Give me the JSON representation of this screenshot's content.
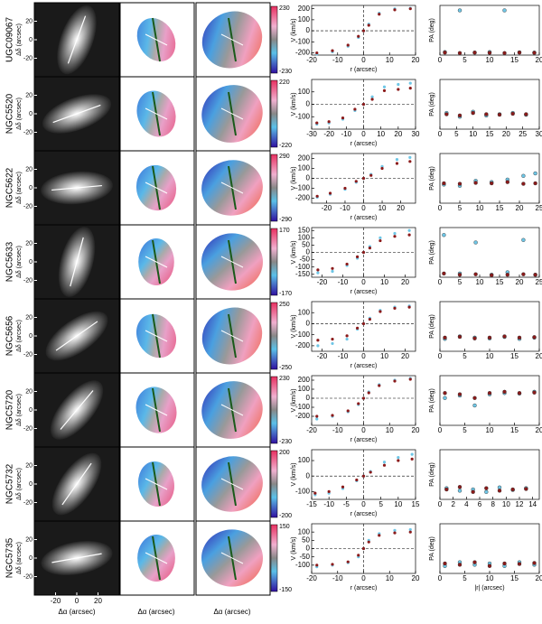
{
  "labels": {
    "dec": "Δδ (arcsec)",
    "ra": "Δα (arcsec)",
    "v": "V (km/s)",
    "r": "r (arcsec)",
    "pa": "PA (deg)",
    "absr": "|r| (arcsec)"
  },
  "colors": {
    "red": "#8b1a1a",
    "blue": "#6ec6e6"
  },
  "img_lim": [
    -40,
    40
  ],
  "img_yticks": [
    20,
    0,
    -20
  ],
  "img_xticks": [
    -20,
    0,
    20
  ],
  "galaxies": [
    {
      "name": "UGC09067",
      "colorbar": [
        230,
        -230
      ],
      "rc": {
        "xlim": [
          -20,
          20
        ],
        "xticks": [
          -20,
          -10,
          0,
          10,
          20
        ],
        "ylim": [
          -220,
          230
        ],
        "yticks": [
          -200,
          -100,
          0,
          100,
          200
        ],
        "x": [
          -18,
          -12,
          -6,
          -2,
          0,
          2,
          6,
          12,
          18
        ],
        "red": [
          -200,
          -180,
          -130,
          -50,
          0,
          50,
          150,
          190,
          200
        ],
        "blue": [
          -210,
          -190,
          -140,
          -60,
          0,
          60,
          160,
          200,
          205
        ]
      },
      "pa": {
        "xlim": [
          0,
          20
        ],
        "xticks": [
          0,
          5,
          10,
          15,
          20
        ],
        "ylim": [
          0,
          200
        ],
        "x": [
          1,
          4,
          7,
          10,
          13,
          16,
          19
        ],
        "red": [
          10,
          8,
          10,
          9,
          8,
          10,
          9
        ],
        "blue": [
          12,
          180,
          10,
          12,
          180,
          11,
          10
        ]
      }
    },
    {
      "name": "NGC5520",
      "colorbar": [
        220,
        -220
      ],
      "rc": {
        "xlim": [
          -30,
          30
        ],
        "xticks": [
          -30,
          -20,
          -10,
          0,
          10,
          20,
          30
        ],
        "ylim": [
          -200,
          200
        ],
        "yticks": [
          -100,
          0,
          100
        ],
        "x": [
          -27,
          -20,
          -12,
          -5,
          0,
          5,
          12,
          20,
          27
        ],
        "red": [
          -150,
          -140,
          -110,
          -40,
          0,
          40,
          110,
          120,
          130
        ],
        "blue": [
          -160,
          -150,
          -120,
          -50,
          0,
          60,
          140,
          160,
          170
        ]
      },
      "pa": {
        "xlim": [
          0,
          30
        ],
        "xticks": [
          0,
          5,
          10,
          15,
          20,
          25,
          30
        ],
        "ylim": [
          0,
          200
        ],
        "x": [
          2,
          6,
          10,
          14,
          18,
          22,
          26
        ],
        "red": [
          60,
          55,
          65,
          60,
          58,
          62,
          60
        ],
        "blue": [
          65,
          50,
          70,
          55,
          60,
          65,
          58
        ]
      }
    },
    {
      "name": "NGC5622",
      "colorbar": [
        290,
        -290
      ],
      "rc": {
        "xlim": [
          -28,
          28
        ],
        "xticks": [
          -20,
          -10,
          0,
          10,
          20
        ],
        "ylim": [
          -250,
          250
        ],
        "yticks": [
          -200,
          -100,
          0,
          100,
          200
        ],
        "x": [
          -25,
          -18,
          -10,
          -4,
          0,
          4,
          10,
          18,
          25
        ],
        "red": [
          -180,
          -150,
          -100,
          -30,
          0,
          30,
          100,
          150,
          170
        ],
        "blue": [
          -190,
          -160,
          -110,
          -40,
          0,
          40,
          120,
          190,
          210
        ]
      },
      "pa": {
        "xlim": [
          0,
          25
        ],
        "xticks": [
          0,
          5,
          10,
          15,
          20,
          25
        ],
        "ylim": [
          0,
          200
        ],
        "x": [
          1,
          5,
          9,
          13,
          17,
          21,
          24
        ],
        "red": [
          80,
          78,
          82,
          80,
          85,
          78,
          80
        ],
        "blue": [
          75,
          70,
          90,
          85,
          95,
          110,
          120
        ]
      }
    },
    {
      "name": "NGC5633",
      "colorbar": [
        170,
        -170
      ],
      "rc": {
        "xlim": [
          -25,
          25
        ],
        "xticks": [
          -20,
          -10,
          0,
          10,
          20
        ],
        "ylim": [
          -170,
          170
        ],
        "yticks": [
          -150,
          -100,
          -50,
          0,
          50,
          100,
          150
        ],
        "x": [
          -22,
          -15,
          -8,
          -3,
          0,
          3,
          8,
          15,
          22
        ],
        "red": [
          -120,
          -110,
          -80,
          -30,
          0,
          30,
          80,
          110,
          120
        ],
        "blue": [
          -140,
          -130,
          -90,
          -40,
          0,
          40,
          100,
          130,
          150
        ]
      },
      "pa": {
        "xlim": [
          0,
          25
        ],
        "xticks": [
          0,
          5,
          10,
          15,
          20,
          25
        ],
        "ylim": [
          0,
          200
        ],
        "x": [
          1,
          5,
          9,
          13,
          17,
          21,
          24
        ],
        "red": [
          15,
          10,
          12,
          8,
          10,
          12,
          10
        ],
        "blue": [
          170,
          15,
          140,
          10,
          20,
          150,
          10
        ]
      }
    },
    {
      "name": "NGC5656",
      "colorbar": [
        250,
        -250
      ],
      "rc": {
        "xlim": [
          -25,
          25
        ],
        "xticks": [
          -20,
          -10,
          0,
          10,
          20
        ],
        "ylim": [
          -250,
          200
        ],
        "yticks": [
          -200,
          -100,
          0,
          100
        ],
        "x": [
          -22,
          -15,
          -8,
          -3,
          0,
          3,
          8,
          15,
          22
        ],
        "red": [
          -150,
          -140,
          -110,
          -40,
          0,
          40,
          110,
          140,
          150
        ],
        "blue": [
          -200,
          -180,
          -140,
          -50,
          0,
          50,
          120,
          150,
          160
        ]
      },
      "pa": {
        "xlim": [
          0,
          20
        ],
        "xticks": [
          0,
          5,
          10,
          15,
          20
        ],
        "ylim": [
          0,
          200
        ],
        "x": [
          1,
          4,
          7,
          10,
          13,
          16,
          19
        ],
        "red": [
          55,
          58,
          52,
          55,
          60,
          55,
          57
        ],
        "blue": [
          50,
          60,
          55,
          52,
          58,
          50,
          55
        ]
      }
    },
    {
      "name": "NGC5720",
      "colorbar": [
        230,
        -230
      ],
      "rc": {
        "xlim": [
          -20,
          20
        ],
        "xticks": [
          -20,
          -10,
          0,
          10,
          20
        ],
        "ylim": [
          -300,
          250
        ],
        "yticks": [
          -200,
          -100,
          0,
          100,
          200
        ],
        "x": [
          -18,
          -12,
          -6,
          -2,
          0,
          2,
          6,
          12,
          18
        ],
        "red": [
          -200,
          -190,
          -140,
          -60,
          0,
          60,
          140,
          190,
          210
        ],
        "blue": [
          -230,
          -200,
          -150,
          -70,
          0,
          70,
          150,
          200,
          220
        ]
      },
      "pa": {
        "xlim": [
          0,
          20
        ],
        "xticks": [
          0,
          5,
          10,
          15,
          20
        ],
        "ylim": [
          0,
          200
        ],
        "x": [
          1,
          4,
          7,
          10,
          13,
          16,
          19
        ],
        "red": [
          130,
          125,
          110,
          130,
          135,
          130,
          132
        ],
        "blue": [
          110,
          120,
          80,
          125,
          130,
          128,
          135
        ]
      }
    },
    {
      "name": "NGC5732",
      "colorbar": [
        200,
        -200
      ],
      "rc": {
        "xlim": [
          -15,
          15
        ],
        "xticks": [
          -15,
          -10,
          -5,
          0,
          5,
          10,
          15
        ],
        "ylim": [
          -150,
          170
        ],
        "yticks": [
          -100,
          0,
          100
        ],
        "x": [
          -14,
          -10,
          -6,
          -2,
          0,
          2,
          6,
          10,
          14
        ],
        "red": [
          -110,
          -100,
          -70,
          -25,
          0,
          25,
          70,
          100,
          110
        ],
        "blue": [
          -120,
          -110,
          -80,
          -30,
          0,
          30,
          90,
          120,
          140
        ]
      },
      "pa": {
        "xlim": [
          0,
          15
        ],
        "xticks": [
          0,
          2,
          4,
          6,
          8,
          10,
          12,
          14
        ],
        "ylim": [
          0,
          200
        ],
        "x": [
          1,
          3,
          5,
          7,
          9,
          11,
          13
        ],
        "red": [
          40,
          50,
          30,
          45,
          35,
          40,
          42
        ],
        "blue": [
          45,
          35,
          40,
          30,
          48,
          38,
          45
        ]
      }
    },
    {
      "name": "NGC5735",
      "colorbar": [
        150,
        -150
      ],
      "rc": {
        "xlim": [
          -20,
          20
        ],
        "xticks": [
          -20,
          -10,
          0,
          10,
          20
        ],
        "ylim": [
          -150,
          150
        ],
        "yticks": [
          -100,
          -50,
          0,
          50,
          100
        ],
        "x": [
          -18,
          -12,
          -6,
          -2,
          0,
          2,
          6,
          12,
          18
        ],
        "red": [
          -100,
          -95,
          -80,
          -40,
          0,
          40,
          80,
          95,
          100
        ],
        "blue": [
          -110,
          -100,
          -85,
          -50,
          0,
          50,
          90,
          110,
          115
        ]
      },
      "pa": {
        "xlim": [
          0,
          20
        ],
        "xticks": [
          0,
          5,
          10,
          15,
          20
        ],
        "ylim": [
          0,
          200
        ],
        "x": [
          1,
          4,
          7,
          10,
          13,
          16,
          19
        ],
        "red": [
          40,
          35,
          45,
          30,
          40,
          38,
          42
        ],
        "blue": [
          30,
          45,
          35,
          40,
          30,
          45,
          35
        ]
      }
    }
  ]
}
